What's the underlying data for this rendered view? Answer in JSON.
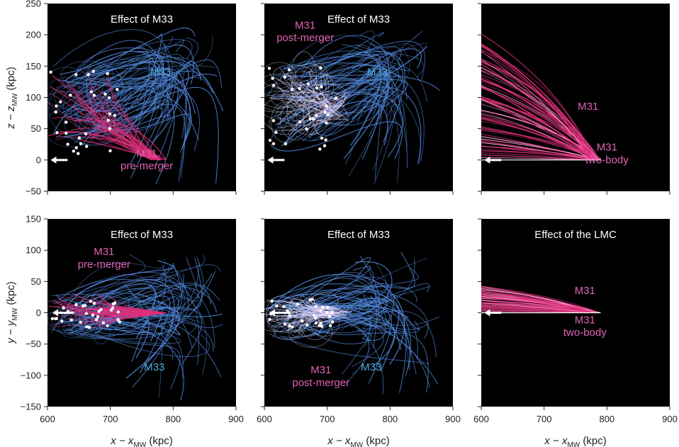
{
  "colors": {
    "panel_bg": "#000000",
    "m33_traj": "#4f86d9",
    "m31_traj": "#e0307a",
    "lmc_traj": "#e0307a",
    "m33_label": "#4fa8d6",
    "m31_label": "#e062b5",
    "points": "#ffffff"
  },
  "axes": {
    "xlabel": "x − x",
    "xlabel_sub": "MW",
    "xlabel_unit": " (kpc)",
    "ylabel_top": "z − z",
    "ylabel_top_sub": "MW",
    "ylabel_top_unit": " (kpc)",
    "ylabel_bottom": "y − y",
    "ylabel_bottom_sub": "MW",
    "ylabel_bottom_unit": " (kpc)",
    "x_ticks": [
      "600",
      "700",
      "800",
      "900"
    ],
    "y_top_ticks": [
      "250",
      "200",
      "150",
      "100",
      "50",
      "0",
      "−50"
    ],
    "y_bottom_ticks": [
      "150",
      "100",
      "50",
      "0",
      "−50",
      "−100",
      "−150"
    ]
  },
  "chart_data": [
    {
      "type": "scatter",
      "panel": "top-left",
      "title": "Effect of M33",
      "xlim": [
        600,
        900
      ],
      "ylim": [
        -50,
        250
      ],
      "annotations": [
        {
          "text": "M33",
          "color": "m33",
          "x": 780,
          "y": 135
        },
        {
          "text": "M31",
          "color": "m31",
          "x": 758,
          "y": 5
        },
        {
          "text": "pre-merger",
          "color": "m31",
          "x": 758,
          "y": -15
        }
      ],
      "series": [
        {
          "role": "M33 trajectories",
          "count": 60
        },
        {
          "role": "M31 pre-merger trajectories",
          "count": 45
        },
        {
          "role": "current positions",
          "count": 30
        }
      ],
      "arrow": {
        "x": [
          632,
          605
        ],
        "y": [
          0,
          0
        ]
      }
    },
    {
      "type": "scatter",
      "panel": "top-middle",
      "title": "Effect of M33",
      "xlim": [
        600,
        900
      ],
      "ylim": [
        -50,
        250
      ],
      "annotations": [
        {
          "text": "M31",
          "color": "m31",
          "x": 665,
          "y": 210
        },
        {
          "text": "post-merger",
          "color": "m31",
          "x": 665,
          "y": 190
        },
        {
          "text": "M33",
          "color": "m33",
          "x": 780,
          "y": 135
        }
      ],
      "series": [
        {
          "role": "M33 trajectories",
          "count": 60
        },
        {
          "role": "M31 post-merger trajectories",
          "count": 40
        },
        {
          "role": "current positions",
          "count": 30
        }
      ],
      "arrow": {
        "x": [
          632,
          605
        ],
        "y": [
          0,
          0
        ]
      }
    },
    {
      "type": "line",
      "panel": "top-right",
      "title": "",
      "xlim": [
        600,
        900
      ],
      "ylim": [
        -50,
        250
      ],
      "annotations": [
        {
          "text": "M31",
          "color": "m31",
          "x": 770,
          "y": 80
        },
        {
          "text": "M31",
          "color": "m31",
          "x": 800,
          "y": 15
        },
        {
          "text": "two-body",
          "color": "m31",
          "x": 800,
          "y": -5
        }
      ],
      "series": [
        {
          "role": "M31 trajectories",
          "count": 70
        }
      ],
      "arrow": {
        "x": [
          632,
          605
        ],
        "y": [
          0,
          0
        ]
      }
    },
    {
      "type": "scatter",
      "panel": "bottom-left",
      "title": "Effect of M33",
      "xlim": [
        600,
        900
      ],
      "ylim": [
        -150,
        150
      ],
      "annotations": [
        {
          "text": "M31",
          "color": "m31",
          "x": 690,
          "y": 92
        },
        {
          "text": "pre-merger",
          "color": "m31",
          "x": 690,
          "y": 72
        },
        {
          "text": "M33",
          "color": "m33",
          "x": 770,
          "y": -92
        }
      ],
      "series": [
        {
          "role": "M33 trajectories",
          "count": 60
        },
        {
          "role": "M31 pre-merger trajectories",
          "count": 45
        },
        {
          "role": "current positions",
          "count": 30
        }
      ],
      "arrow": {
        "x": [
          642,
          608
        ],
        "y": [
          0,
          0
        ]
      }
    },
    {
      "type": "scatter",
      "panel": "bottom-middle",
      "title": "Effect of M33",
      "xlim": [
        600,
        900
      ],
      "ylim": [
        -150,
        150
      ],
      "annotations": [
        {
          "text": "M31",
          "color": "m31",
          "x": 690,
          "y": -97
        },
        {
          "text": "post-merger",
          "color": "m31",
          "x": 690,
          "y": -117
        },
        {
          "text": "M33",
          "color": "m33",
          "x": 770,
          "y": -92
        }
      ],
      "series": [
        {
          "role": "M33 trajectories",
          "count": 60
        },
        {
          "role": "M31 post-merger trajectories",
          "count": 40
        },
        {
          "role": "current positions",
          "count": 30
        }
      ],
      "arrow": {
        "x": [
          642,
          608
        ],
        "y": [
          0,
          0
        ]
      }
    },
    {
      "type": "line",
      "panel": "bottom-right",
      "title": "Effect of the LMC",
      "xlim": [
        600,
        900
      ],
      "ylim": [
        -150,
        150
      ],
      "annotations": [
        {
          "text": "M31",
          "color": "m31",
          "x": 765,
          "y": 30
        },
        {
          "text": "M31",
          "color": "m31",
          "x": 765,
          "y": -17
        },
        {
          "text": "two-body",
          "color": "m31",
          "x": 765,
          "y": -37
        }
      ],
      "series": [
        {
          "role": "M31 trajectories",
          "count": 55
        }
      ],
      "arrow": {
        "x": [
          632,
          605
        ],
        "y": [
          0,
          0
        ]
      }
    }
  ]
}
